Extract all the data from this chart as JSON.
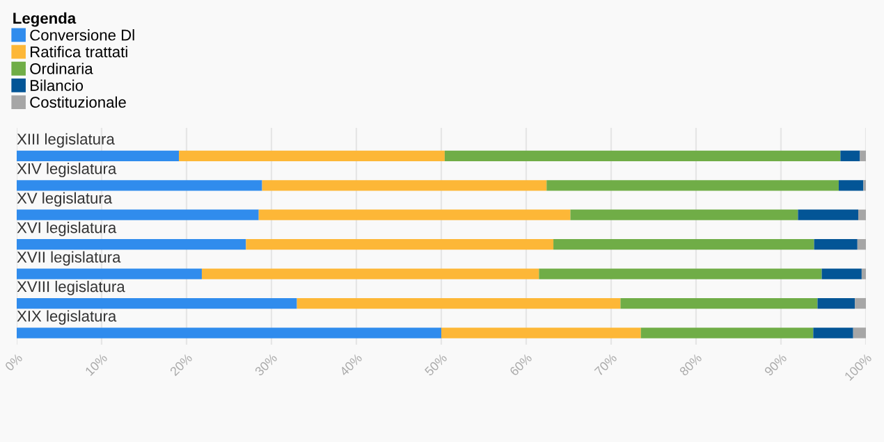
{
  "chart_data": {
    "type": "bar",
    "orientation": "horizontal",
    "stacked": true,
    "legend_title": "Legenda",
    "legend": "top left",
    "grid": "x",
    "categories": [
      "XIII legislatura",
      "XIV legislatura",
      "XV legislatura",
      "XVI legislatura",
      "XVII legislatura",
      "XVIII legislatura",
      "XIX legislatura"
    ],
    "xlim": [
      0,
      100
    ],
    "xticks": [
      {
        "value": 0,
        "label": "0%"
      },
      {
        "value": 10,
        "label": "10%"
      },
      {
        "value": 20,
        "label": "20%"
      },
      {
        "value": 30,
        "label": "30%"
      },
      {
        "value": 40,
        "label": "40%"
      },
      {
        "value": 50,
        "label": "50%"
      },
      {
        "value": 60,
        "label": "60%"
      },
      {
        "value": 70,
        "label": "70%"
      },
      {
        "value": 80,
        "label": "80%"
      },
      {
        "value": 90,
        "label": "90%"
      },
      {
        "value": 100,
        "label": "100%"
      }
    ],
    "series": [
      {
        "name": "Conversione Dl",
        "color": "#308ced",
        "values": [
          19.1,
          28.9,
          28.5,
          27.0,
          21.8,
          33.0,
          50.0
        ]
      },
      {
        "name": "Ratifica trattati",
        "color": "#fdb737",
        "values": [
          31.3,
          33.5,
          36.7,
          36.2,
          39.7,
          38.1,
          23.5
        ]
      },
      {
        "name": "Ordinaria",
        "color": "#70ad47",
        "values": [
          46.6,
          34.4,
          26.8,
          30.7,
          33.3,
          23.2,
          20.3
        ]
      },
      {
        "name": "Bilancio",
        "color": "#035596",
        "values": [
          2.3,
          2.9,
          7.1,
          5.1,
          4.7,
          4.4,
          4.7
        ]
      },
      {
        "name": "Costituzionale",
        "color": "#a6a6a6",
        "values": [
          0.7,
          0.3,
          0.9,
          1.0,
          0.5,
          1.3,
          1.5
        ]
      }
    ]
  }
}
